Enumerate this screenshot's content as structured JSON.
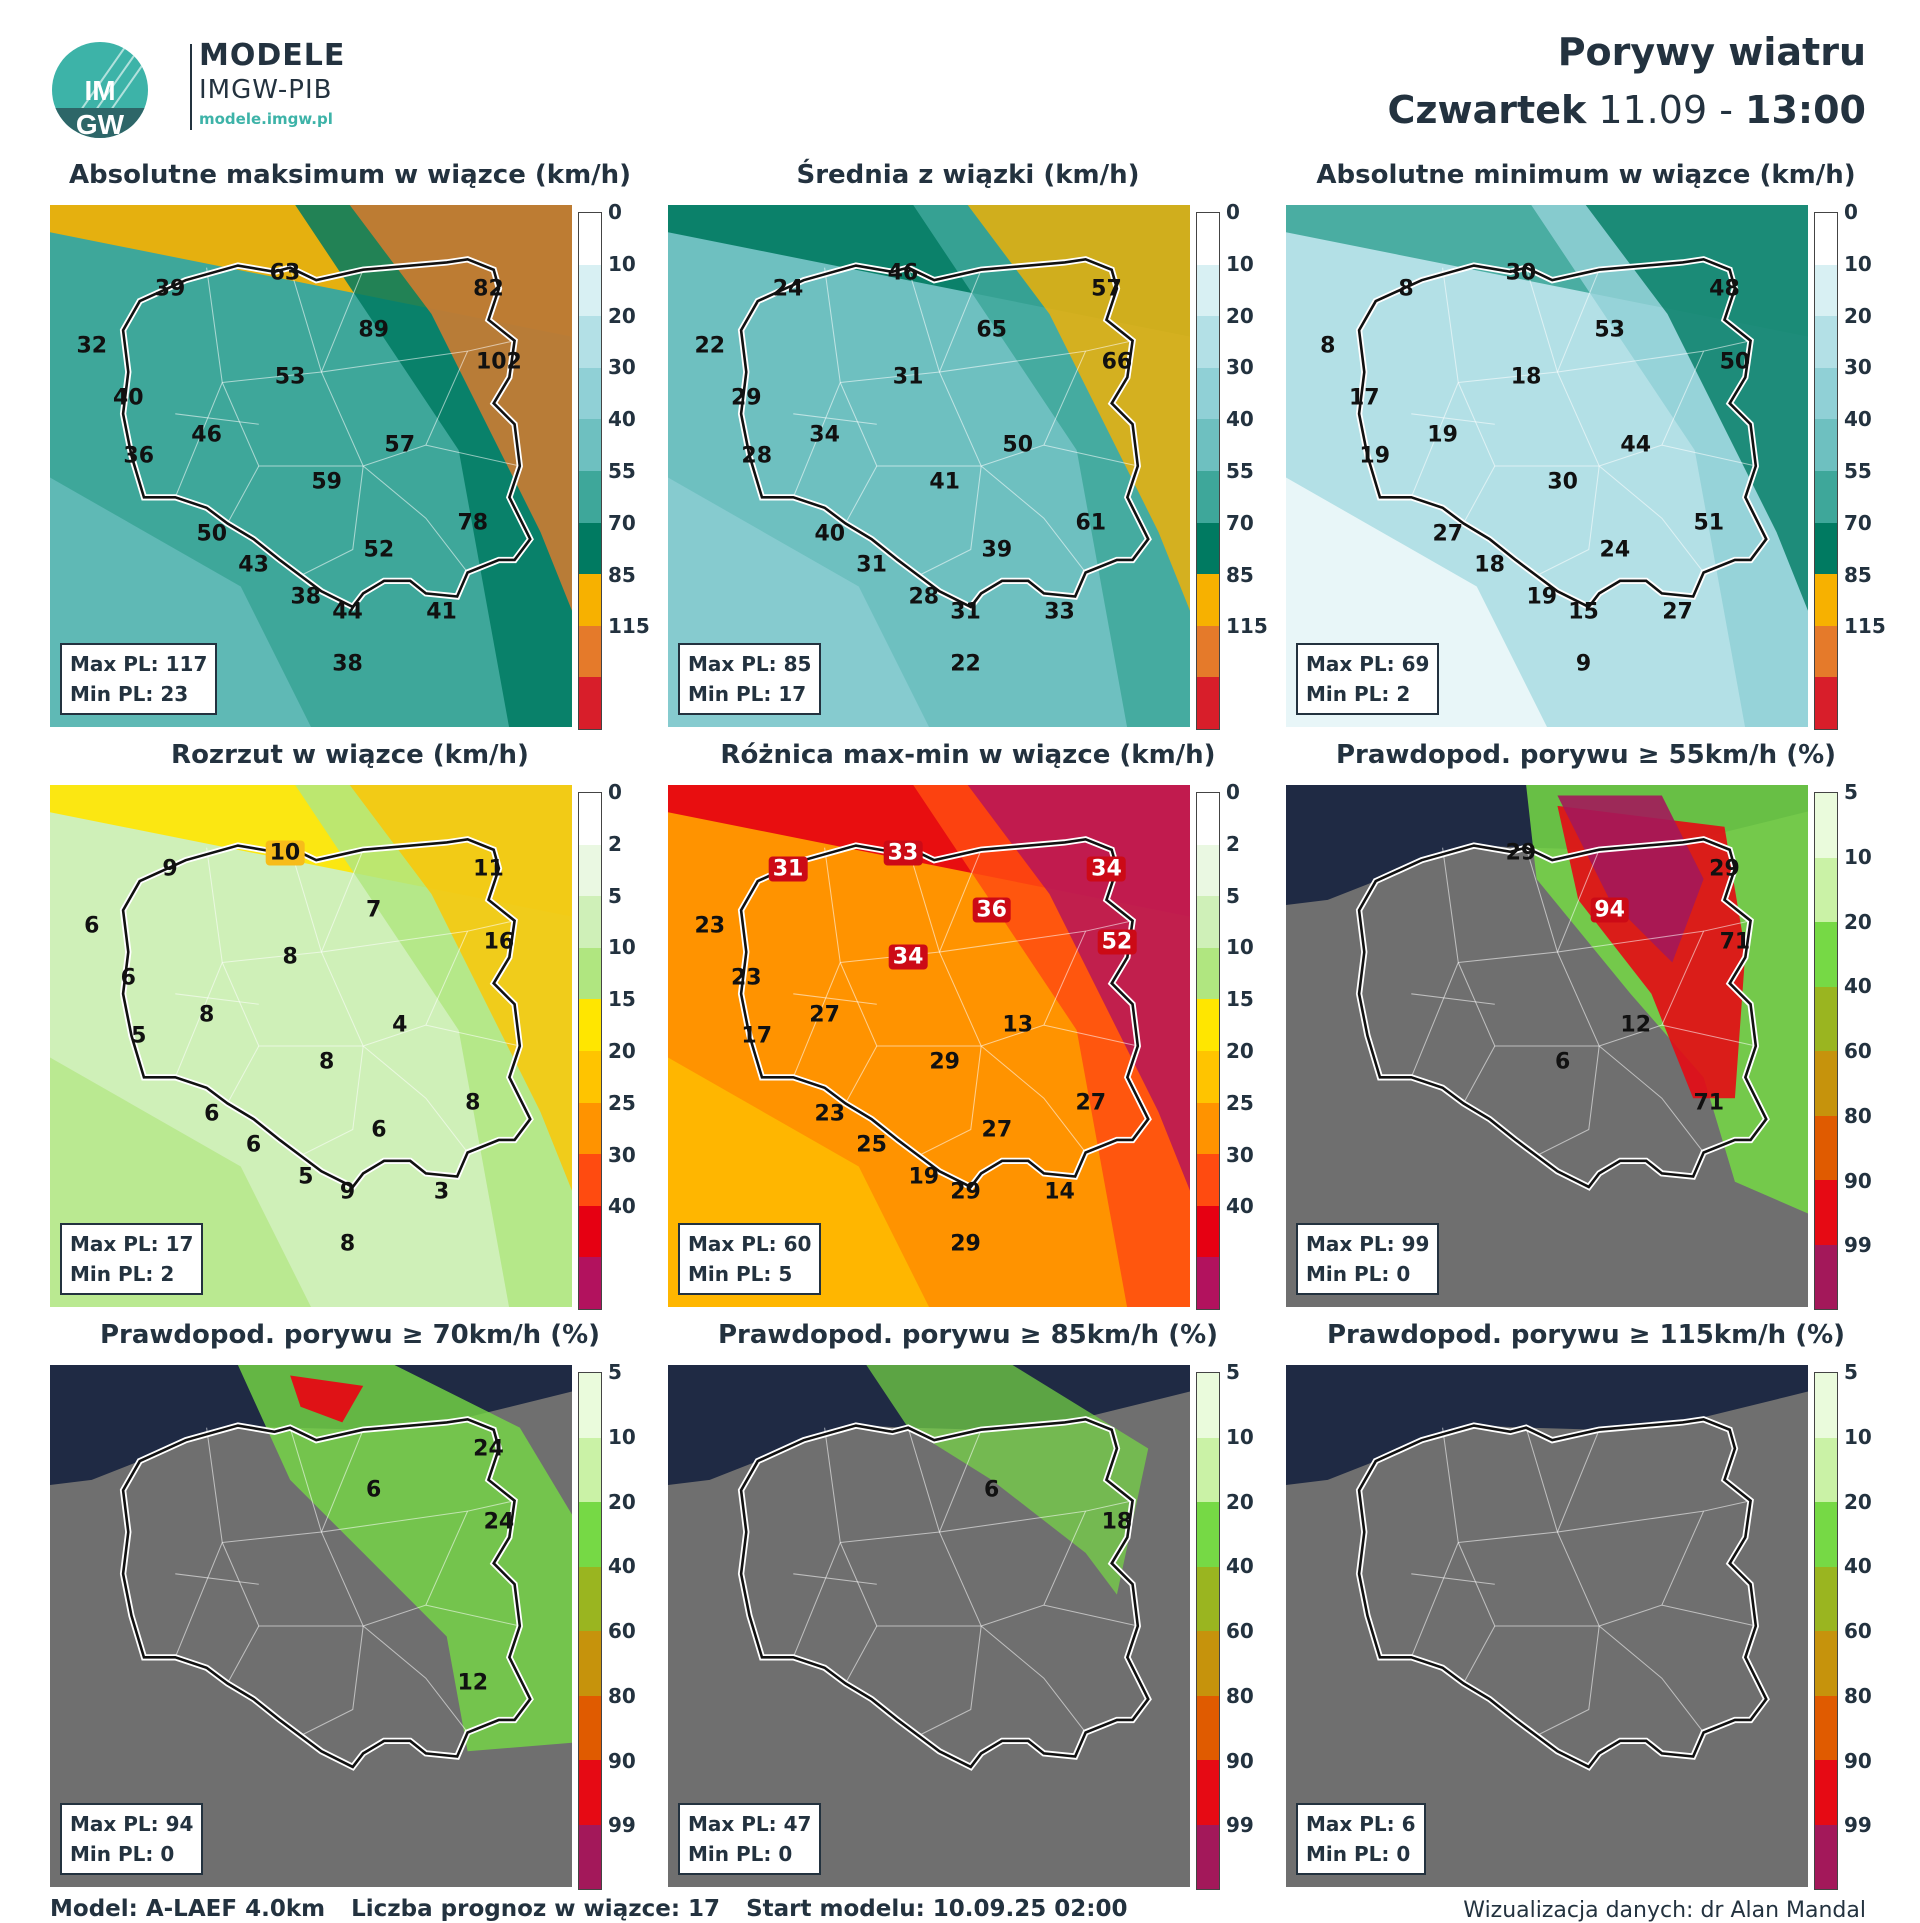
{
  "header": {
    "brand_name": "MODELE",
    "brand_sub": "IMGW-PIB",
    "brand_url": "modele.imgw.pl",
    "logo_text_top": "IM",
    "logo_text_bottom": "GW",
    "title": "Porywy wiatru",
    "day": "Czwartek",
    "date": "11.09",
    "sep": "-",
    "time": "13:00"
  },
  "scales": {
    "wind": {
      "labels": [
        "0",
        "10",
        "20",
        "30",
        "40",
        "55",
        "70",
        "85",
        "115"
      ],
      "colors": [
        "#ffffff",
        "#d8f0f3",
        "#b3e0e6",
        "#90d0d6",
        "#6ec0c0",
        "#3ea79a",
        "#007a61",
        "#f7b100",
        "#e57a2a",
        "#d81e2a"
      ]
    },
    "spread": {
      "labels": [
        "0",
        "2",
        "5",
        "10",
        "15",
        "20",
        "25",
        "30",
        "40"
      ],
      "colors": [
        "#ffffff",
        "#eaf8e2",
        "#cff0b8",
        "#b0e680",
        "#ffe600",
        "#ffc400",
        "#ff9300",
        "#ff4b10",
        "#e60012",
        "#b2125e"
      ]
    },
    "prob": {
      "labels": [
        "5",
        "10",
        "20",
        "40",
        "60",
        "80",
        "90",
        "99"
      ],
      "colors": [
        "#eafbdc",
        "#caf2a6",
        "#76d945",
        "#9ab520",
        "#c6930c",
        "#e05b00",
        "#e60a14",
        "#a3185a"
      ]
    }
  },
  "panels": [
    {
      "title": "Absolutne maksimum w wiązce (km/h)",
      "scale": "wind",
      "max_label": "Max PL: 117",
      "min_label": "Min PL: 23",
      "labels": [
        [
          "63",
          0.45,
          0.13
        ],
        [
          "39",
          0.23,
          0.16
        ],
        [
          "82",
          0.84,
          0.16
        ],
        [
          "32",
          0.08,
          0.27
        ],
        [
          "89",
          0.62,
          0.24
        ],
        [
          "102",
          0.86,
          0.3
        ],
        [
          "53",
          0.46,
          0.33
        ],
        [
          "40",
          0.15,
          0.37
        ],
        [
          "46",
          0.3,
          0.44
        ],
        [
          "57",
          0.67,
          0.46
        ],
        [
          "36",
          0.17,
          0.48
        ],
        [
          "59",
          0.53,
          0.53
        ],
        [
          "78",
          0.81,
          0.61
        ],
        [
          "50",
          0.31,
          0.63
        ],
        [
          "52",
          0.63,
          0.66
        ],
        [
          "43",
          0.39,
          0.69
        ],
        [
          "38",
          0.49,
          0.75
        ],
        [
          "44",
          0.57,
          0.78
        ],
        [
          "41",
          0.75,
          0.78
        ],
        [
          "38",
          0.57,
          0.88
        ]
      ]
    },
    {
      "title": "Średnia z wiązki (km/h)",
      "scale": "wind",
      "max_label": "Max PL: 85",
      "min_label": "Min PL: 17",
      "labels": [
        [
          "46",
          0.45,
          0.13
        ],
        [
          "24",
          0.23,
          0.16
        ],
        [
          "57",
          0.84,
          0.16
        ],
        [
          "22",
          0.08,
          0.27
        ],
        [
          "65",
          0.62,
          0.24
        ],
        [
          "66",
          0.86,
          0.3
        ],
        [
          "31",
          0.46,
          0.33
        ],
        [
          "29",
          0.15,
          0.37
        ],
        [
          "34",
          0.3,
          0.44
        ],
        [
          "50",
          0.67,
          0.46
        ],
        [
          "28",
          0.17,
          0.48
        ],
        [
          "41",
          0.53,
          0.53
        ],
        [
          "61",
          0.81,
          0.61
        ],
        [
          "40",
          0.31,
          0.63
        ],
        [
          "39",
          0.63,
          0.66
        ],
        [
          "31",
          0.39,
          0.69
        ],
        [
          "28",
          0.49,
          0.75
        ],
        [
          "31",
          0.57,
          0.78
        ],
        [
          "33",
          0.75,
          0.78
        ],
        [
          "22",
          0.57,
          0.88
        ]
      ]
    },
    {
      "title": "Absolutne minimum w wiązce (km/h)",
      "scale": "wind",
      "max_label": "Max PL: 69",
      "min_label": "Min PL: 2",
      "labels": [
        [
          "30",
          0.45,
          0.13
        ],
        [
          "8",
          0.23,
          0.16
        ],
        [
          "48",
          0.84,
          0.16
        ],
        [
          "8",
          0.08,
          0.27
        ],
        [
          "53",
          0.62,
          0.24
        ],
        [
          "50",
          0.86,
          0.3
        ],
        [
          "18",
          0.46,
          0.33
        ],
        [
          "17",
          0.15,
          0.37
        ],
        [
          "19",
          0.3,
          0.44
        ],
        [
          "44",
          0.67,
          0.46
        ],
        [
          "19",
          0.17,
          0.48
        ],
        [
          "30",
          0.53,
          0.53
        ],
        [
          "51",
          0.81,
          0.61
        ],
        [
          "27",
          0.31,
          0.63
        ],
        [
          "24",
          0.63,
          0.66
        ],
        [
          "18",
          0.39,
          0.69
        ],
        [
          "19",
          0.49,
          0.75
        ],
        [
          "15",
          0.57,
          0.78
        ],
        [
          "27",
          0.75,
          0.78
        ],
        [
          "9",
          0.57,
          0.88
        ]
      ]
    },
    {
      "title": "Rozrzut w wiązce (km/h)",
      "scale": "spread",
      "max_label": "Max PL: 17",
      "min_label": "Min PL: 2",
      "labels": [
        [
          "10",
          0.45,
          0.13
        ],
        [
          "9",
          0.23,
          0.16
        ],
        [
          "11",
          0.84,
          0.16
        ],
        [
          "6",
          0.08,
          0.27
        ],
        [
          "7",
          0.62,
          0.24
        ],
        [
          "16",
          0.86,
          0.3
        ],
        [
          "8",
          0.46,
          0.33
        ],
        [
          "6",
          0.15,
          0.37
        ],
        [
          "8",
          0.3,
          0.44
        ],
        [
          "4",
          0.67,
          0.46
        ],
        [
          "5",
          0.17,
          0.48
        ],
        [
          "8",
          0.53,
          0.53
        ],
        [
          "8",
          0.81,
          0.61
        ],
        [
          "6",
          0.31,
          0.63
        ],
        [
          "6",
          0.63,
          0.66
        ],
        [
          "6",
          0.39,
          0.69
        ],
        [
          "5",
          0.49,
          0.75
        ],
        [
          "9",
          0.57,
          0.78
        ],
        [
          "3",
          0.75,
          0.78
        ],
        [
          "8",
          0.57,
          0.88
        ]
      ]
    },
    {
      "title": "Różnica max-min w wiązce (km/h)",
      "scale": "spread",
      "max_label": "Max PL: 60",
      "min_label": "Min PL: 5",
      "labels": [
        [
          "33",
          0.45,
          0.13
        ],
        [
          "31",
          0.23,
          0.16
        ],
        [
          "34",
          0.84,
          0.16
        ],
        [
          "23",
          0.08,
          0.27
        ],
        [
          "36",
          0.62,
          0.24
        ],
        [
          "52",
          0.86,
          0.3
        ],
        [
          "34",
          0.46,
          0.33
        ],
        [
          "23",
          0.15,
          0.37
        ],
        [
          "27",
          0.3,
          0.44
        ],
        [
          "13",
          0.67,
          0.46
        ],
        [
          "17",
          0.17,
          0.48
        ],
        [
          "29",
          0.53,
          0.53
        ],
        [
          "27",
          0.81,
          0.61
        ],
        [
          "23",
          0.31,
          0.63
        ],
        [
          "27",
          0.63,
          0.66
        ],
        [
          "25",
          0.39,
          0.69
        ],
        [
          "19",
          0.49,
          0.75
        ],
        [
          "29",
          0.57,
          0.78
        ],
        [
          "14",
          0.75,
          0.78
        ],
        [
          "29",
          0.57,
          0.88
        ]
      ]
    },
    {
      "title": "Prawdopod. porywu ≥ 55km/h (%)",
      "scale": "prob",
      "max_label": "Max PL: 99",
      "min_label": "Min PL: 0",
      "labels": [
        [
          "29",
          0.45,
          0.13
        ],
        [
          "29",
          0.84,
          0.16
        ],
        [
          "94",
          0.62,
          0.24
        ],
        [
          "71",
          0.86,
          0.3
        ],
        [
          "12",
          0.67,
          0.46
        ],
        [
          "6",
          0.53,
          0.53
        ],
        [
          "71",
          0.81,
          0.61
        ]
      ]
    },
    {
      "title": "Prawdopod. porywu ≥ 70km/h (%)",
      "scale": "prob",
      "max_label": "Max PL: 94",
      "min_label": "Min PL: 0",
      "labels": [
        [
          "24",
          0.84,
          0.16
        ],
        [
          "6",
          0.62,
          0.24
        ],
        [
          "24",
          0.86,
          0.3
        ],
        [
          "12",
          0.81,
          0.61
        ]
      ]
    },
    {
      "title": "Prawdopod. porywu ≥ 85km/h (%)",
      "scale": "prob",
      "max_label": "Max PL: 47",
      "min_label": "Min PL: 0",
      "labels": [
        [
          "6",
          0.62,
          0.24
        ],
        [
          "18",
          0.86,
          0.3
        ]
      ]
    },
    {
      "title": "Prawdopod. porywu ≥ 115km/h (%)",
      "scale": "prob",
      "max_label": "Max PL: 6",
      "min_label": "Min PL: 0",
      "labels": []
    }
  ],
  "footer": {
    "model": "Model: A-LAEF 4.0km",
    "ensemble": "Liczba prognoz w wiązce: 17",
    "start": "Start modelu: 10.09.25  02:00",
    "credit": "Wizualizacja danych: dr Alan Mandal"
  }
}
